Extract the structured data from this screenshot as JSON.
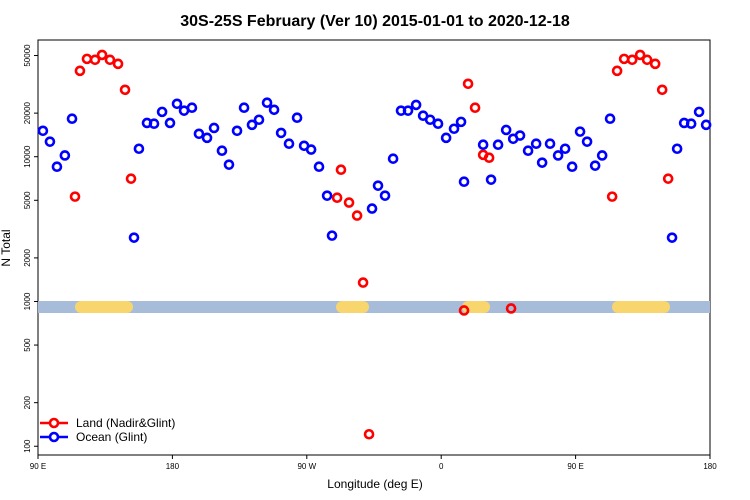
{
  "chart_data": {
    "type": "scatter",
    "title": "30S-25S February (Ver 10)   2015-01-01 to 2020-12-18",
    "x_label": "Longitude (deg E)",
    "y_label": "N Total",
    "y_scale": "log",
    "xlim": [
      90,
      540
    ],
    "ylim": [
      87,
      64000
    ],
    "xticks": [
      {
        "value": 90,
        "label": "90 E"
      },
      180,
      {
        "value": 270,
        "label": "90 W"
      },
      {
        "value": 360,
        "label": "0"
      },
      {
        "value": 450,
        "label": "90 E"
      },
      {
        "value": 540,
        "label": "180"
      }
    ],
    "yticks": [
      100,
      200,
      500,
      1000,
      2000,
      5000,
      10000,
      20000,
      50000
    ],
    "legend": "bottom-left",
    "series": [
      {
        "name": "Land (Nadir&Glint)",
        "color": "#ff0000",
        "x": [
          114.8,
          118.1,
          122.8,
          128.2,
          132.9,
          138.2,
          143.6,
          148.3,
          152.3,
          290.3,
          292.9,
          298.3,
          303.7,
          307.7,
          311.7,
          375.3,
          378.0,
          382.7,
          388.1,
          392.1,
          406.8,
          474.5,
          477.8,
          482.5,
          487.9,
          493.2,
          497.9,
          503.3,
          508.0,
          512.0
        ],
        "values": [
          5300,
          39200,
          47400,
          46700,
          50500,
          46700,
          43800,
          29000,
          7050,
          5210,
          8130,
          4820,
          3920,
          1350,
          121,
          867,
          31900,
          21800,
          10300,
          9840,
          895,
          5300,
          39200,
          47400,
          46700,
          50500,
          46700,
          43800,
          29000,
          7050
        ]
      },
      {
        "name": "Ocean (Glint)",
        "color": "#0000ff",
        "x": [
          93.3,
          98.0,
          102.7,
          108.0,
          112.8,
          154.3,
          157.6,
          163.0,
          167.7,
          173.1,
          178.4,
          183.1,
          187.8,
          193.1,
          197.8,
          203.2,
          207.9,
          213.2,
          217.9,
          223.3,
          228.0,
          233.3,
          238.0,
          243.4,
          248.1,
          252.8,
          258.1,
          263.5,
          268.2,
          272.9,
          278.2,
          283.6,
          286.9,
          313.7,
          317.7,
          322.4,
          327.8,
          333.1,
          337.8,
          343.2,
          347.9,
          352.6,
          357.9,
          363.3,
          368.6,
          373.3,
          375.3,
          388.1,
          393.4,
          398.1,
          403.5,
          408.2,
          412.8,
          418.2,
          423.6,
          427.6,
          432.9,
          438.3,
          443.0,
          447.7,
          453.0,
          457.7,
          463.1,
          467.8,
          473.1,
          514.6,
          518.0,
          522.7,
          527.4,
          532.7,
          537.4
        ],
        "values": [
          15100,
          12700,
          8530,
          10200,
          18300,
          2760,
          11350,
          17100,
          16900,
          20400,
          17100,
          23200,
          20800,
          21800,
          14400,
          13500,
          15800,
          11000,
          8810,
          15100,
          21800,
          16600,
          18000,
          23600,
          21100,
          14600,
          12300,
          18600,
          11900,
          11200,
          8530,
          5380,
          2850,
          4380,
          6310,
          5380,
          9690,
          20800,
          20800,
          22800,
          19200,
          18000,
          16900,
          13500,
          15600,
          17400,
          6720,
          12100,
          6940,
          12100,
          15300,
          13300,
          14000,
          11000,
          12300,
          9100,
          12300,
          10200,
          11350,
          8530,
          14900,
          12700,
          8670,
          10200,
          18300,
          2760,
          11350,
          17100,
          16900,
          20400,
          16600
        ]
      }
    ]
  }
}
